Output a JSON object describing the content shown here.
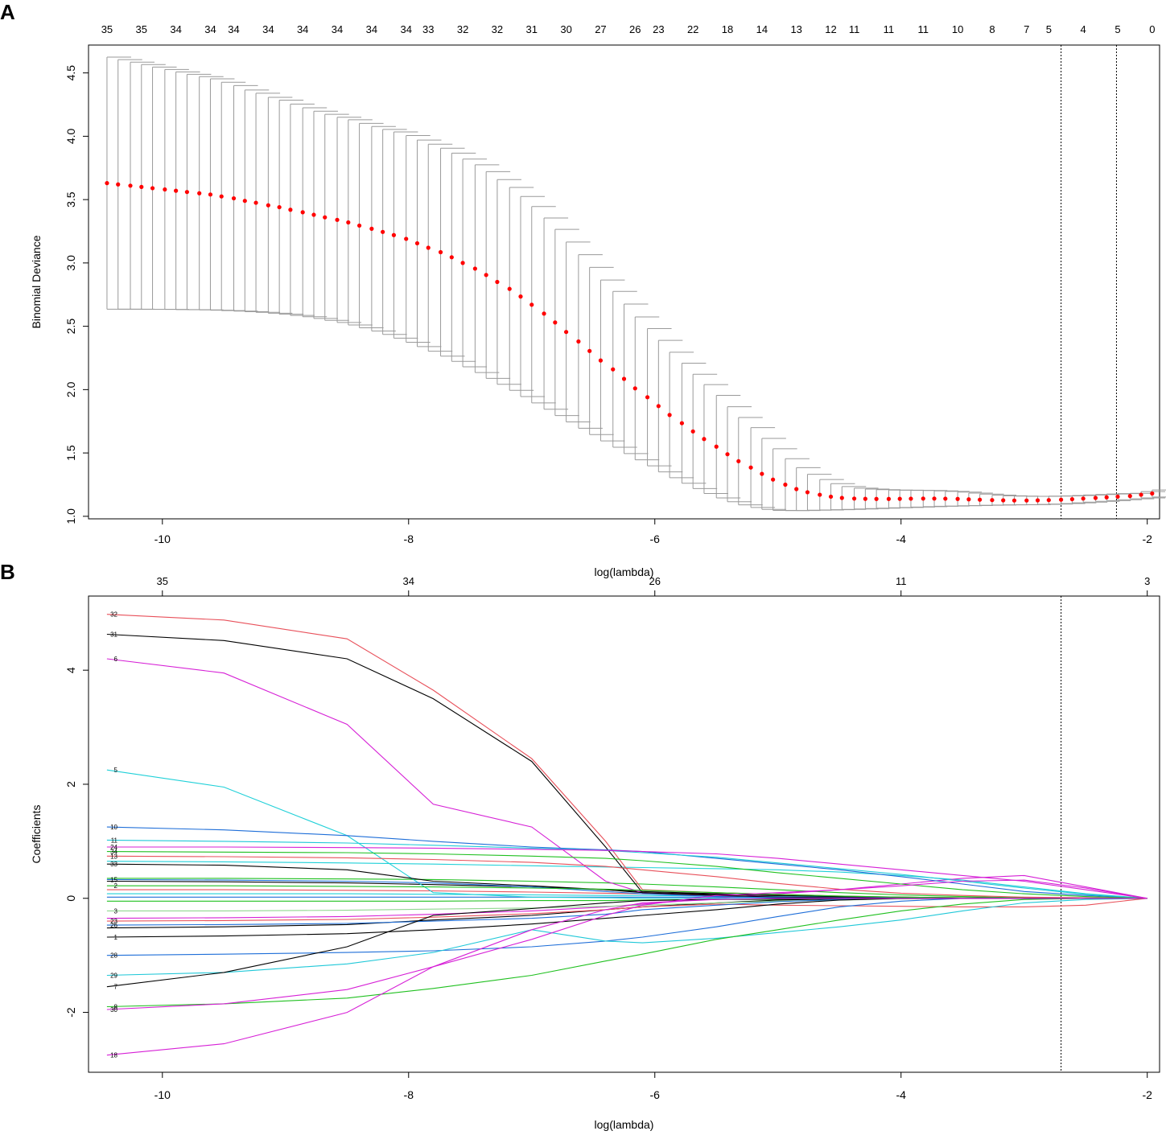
{
  "chart_data": [
    {
      "panel": "A",
      "type": "scatter",
      "xlabel": "log(lambda)",
      "ylabel": "Binomial Deviance",
      "xlim": [
        -10.6,
        -1.9
      ],
      "ylim": [
        0.98,
        4.72
      ],
      "x_ticks": [
        "-10",
        "-8",
        "-6",
        "-4",
        "-2"
      ],
      "y_ticks": [
        "1.0",
        "1.5",
        "2.0",
        "2.5",
        "3.0",
        "3.5",
        "4.0",
        "4.5"
      ],
      "top_axis_labels": [
        "35",
        "35",
        "34",
        "34",
        "34",
        "34",
        "34",
        "34",
        "34",
        "34",
        "33",
        "32",
        "32",
        "31",
        "30",
        "27",
        "26",
        "23",
        "22",
        "18",
        "14",
        "13",
        "12",
        "11",
        "11",
        "11",
        "10",
        "8",
        "7",
        "5",
        "4",
        "5",
        "0"
      ],
      "point_color": "#ff0000",
      "errorbar_color": "#9a9a9a",
      "vlines": [
        -2.7,
        -2.25
      ],
      "x": [
        -10.45,
        -10.36,
        -10.26,
        -10.17,
        -10.08,
        -9.98,
        -9.89,
        -9.8,
        -9.7,
        -9.61,
        -9.52,
        -9.42,
        -9.33,
        -9.24,
        -9.14,
        -9.05,
        -8.96,
        -8.86,
        -8.77,
        -8.68,
        -8.58,
        -8.49,
        -8.4,
        -8.3,
        -8.21,
        -8.12,
        -8.02,
        -7.93,
        -7.84,
        -7.74,
        -7.65,
        -7.56,
        -7.46,
        -7.37,
        -7.28,
        -7.18,
        -7.09,
        -7.0,
        -6.9,
        -6.81,
        -6.72,
        -6.62,
        -6.53,
        -6.44,
        -6.34,
        -6.25,
        -6.16,
        -6.06,
        -5.97,
        -5.88,
        -5.78,
        -5.69,
        -5.6,
        -5.5,
        -5.41,
        -5.32,
        -5.22,
        -5.13,
        -5.04,
        -4.94,
        -4.85,
        -4.76,
        -4.66,
        -4.57,
        -4.48,
        -4.38,
        -4.29,
        -4.2,
        -4.1,
        -4.01,
        -3.92,
        -3.82,
        -3.73,
        -3.64,
        -3.54,
        -3.45,
        -3.36,
        -3.26,
        -3.17,
        -3.08,
        -2.98,
        -2.89,
        -2.8,
        -2.7,
        -2.61,
        -2.52,
        -2.42,
        -2.33,
        -2.24,
        -2.14,
        -2.05,
        -1.96
      ],
      "y": [
        3.63,
        3.62,
        3.61,
        3.6,
        3.59,
        3.58,
        3.57,
        3.56,
        3.55,
        3.54,
        3.525,
        3.51,
        3.49,
        3.475,
        3.455,
        3.44,
        3.42,
        3.4,
        3.38,
        3.36,
        3.34,
        3.32,
        3.295,
        3.27,
        3.245,
        3.22,
        3.19,
        3.155,
        3.12,
        3.085,
        3.045,
        3.0,
        2.955,
        2.905,
        2.85,
        2.795,
        2.735,
        2.67,
        2.6,
        2.53,
        2.455,
        2.38,
        2.305,
        2.23,
        2.16,
        2.085,
        2.01,
        1.94,
        1.87,
        1.8,
        1.735,
        1.67,
        1.61,
        1.55,
        1.49,
        1.435,
        1.385,
        1.335,
        1.29,
        1.25,
        1.215,
        1.19,
        1.17,
        1.155,
        1.145,
        1.14,
        1.138,
        1.137,
        1.137,
        1.138,
        1.139,
        1.14,
        1.14,
        1.139,
        1.137,
        1.134,
        1.131,
        1.128,
        1.126,
        1.125,
        1.125,
        1.126,
        1.128,
        1.131,
        1.135,
        1.14,
        1.145,
        1.15,
        1.155,
        1.16,
        1.17,
        1.18
      ],
      "lower": [
        2.635,
        2.635,
        2.635,
        2.634,
        2.634,
        2.633,
        2.632,
        2.631,
        2.629,
        2.627,
        2.624,
        2.62,
        2.615,
        2.61,
        2.603,
        2.595,
        2.586,
        2.575,
        2.562,
        2.547,
        2.53,
        2.51,
        2.488,
        2.463,
        2.436,
        2.406,
        2.374,
        2.34,
        2.303,
        2.264,
        2.223,
        2.18,
        2.135,
        2.089,
        2.042,
        1.994,
        1.945,
        1.895,
        1.845,
        1.795,
        1.745,
        1.695,
        1.645,
        1.595,
        1.545,
        1.495,
        1.446,
        1.398,
        1.351,
        1.305,
        1.261,
        1.219,
        1.18,
        1.145,
        1.115,
        1.09,
        1.07,
        1.055,
        1.047,
        1.045,
        1.046,
        1.048,
        1.05,
        1.052,
        1.055,
        1.058,
        1.061,
        1.064,
        1.067,
        1.07,
        1.073,
        1.076,
        1.079,
        1.081,
        1.083,
        1.085,
        1.087,
        1.089,
        1.09,
        1.091,
        1.092,
        1.094,
        1.097,
        1.101,
        1.106,
        1.112,
        1.118,
        1.124,
        1.131,
        1.138,
        1.145,
        1.152
      ],
      "upper": [
        4.625,
        4.605,
        4.585,
        4.566,
        4.546,
        4.527,
        4.508,
        4.489,
        4.471,
        4.453,
        4.426,
        4.4,
        4.365,
        4.34,
        4.307,
        4.285,
        4.254,
        4.225,
        4.198,
        4.173,
        4.15,
        4.13,
        4.102,
        4.077,
        4.054,
        4.034,
        4.006,
        3.97,
        3.937,
        3.906,
        3.867,
        3.82,
        3.775,
        3.721,
        3.658,
        3.596,
        3.525,
        3.445,
        3.355,
        3.265,
        3.165,
        3.065,
        2.965,
        2.865,
        2.775,
        2.675,
        2.574,
        2.482,
        2.389,
        2.295,
        2.209,
        2.121,
        2.04,
        1.955,
        1.865,
        1.78,
        1.7,
        1.615,
        1.533,
        1.455,
        1.384,
        1.332,
        1.29,
        1.258,
        1.235,
        1.222,
        1.215,
        1.21,
        1.207,
        1.206,
        1.205,
        1.204,
        1.201,
        1.197,
        1.191,
        1.183,
        1.175,
        1.167,
        1.162,
        1.159,
        1.158,
        1.158,
        1.159,
        1.161,
        1.164,
        1.168,
        1.172,
        1.176,
        1.179,
        1.182,
        1.195,
        1.208
      ]
    },
    {
      "panel": "B",
      "type": "line",
      "xlabel": "log(lambda)",
      "ylabel": "Coefficients",
      "xlim": [
        -10.6,
        -1.9
      ],
      "ylim": [
        -3.05,
        5.3
      ],
      "x_ticks": [
        "-10",
        "-8",
        "-6",
        "-4",
        "-2"
      ],
      "y_ticks": [
        "-2",
        "0",
        "2",
        "4"
      ],
      "top_axis_ticks": [
        {
          "x": -10,
          "label": "35"
        },
        {
          "x": -8,
          "label": "34"
        },
        {
          "x": -6,
          "label": "26"
        },
        {
          "x": -4,
          "label": "11"
        },
        {
          "x": -2,
          "label": "3"
        }
      ],
      "vlines": [
        -2.7
      ],
      "x": [
        -10.45,
        -9.5,
        -8.5,
        -7.8,
        -7.0,
        -6.4,
        -6.1,
        -5.5,
        -5.0,
        -4.5,
        -4.0,
        -3.5,
        -3.0,
        -2.5,
        -2.0
      ],
      "series": [
        {
          "label": "32",
          "color": "#e8505a",
          "values": [
            4.98,
            4.88,
            4.55,
            3.65,
            2.45,
            1.0,
            0.15,
            0.1,
            0.07,
            0.04,
            0.02,
            0.01,
            0,
            0,
            0
          ]
        },
        {
          "label": "31",
          "color": "#000000",
          "values": [
            4.63,
            4.52,
            4.2,
            3.5,
            2.4,
            0.9,
            0.1,
            0.07,
            0.05,
            0.03,
            0.02,
            0.01,
            0,
            0,
            0
          ]
        },
        {
          "label": "6",
          "color": "#d620d6",
          "values": [
            4.2,
            3.95,
            3.05,
            1.65,
            1.25,
            0.3,
            0.1,
            0.05,
            0.02,
            0.01,
            0,
            0,
            0,
            0,
            0
          ]
        },
        {
          "label": "5",
          "color": "#20d0d8",
          "values": [
            2.25,
            1.95,
            1.1,
            0.1,
            0.02,
            0.01,
            0,
            0,
            0,
            0,
            0,
            0,
            0,
            0,
            0
          ]
        },
        {
          "label": "10",
          "color": "#1e6ed8",
          "values": [
            1.25,
            1.2,
            1.1,
            1.0,
            0.9,
            0.85,
            0.82,
            0.7,
            0.6,
            0.5,
            0.38,
            0.25,
            0.12,
            0.05,
            0
          ]
        },
        {
          "label": "11",
          "color": "#20c8d8",
          "values": [
            1.02,
            1.0,
            0.97,
            0.93,
            0.88,
            0.84,
            0.8,
            0.72,
            0.62,
            0.52,
            0.42,
            0.3,
            0.18,
            0.07,
            0
          ]
        },
        {
          "label": "24",
          "color": "#d620d6",
          "values": [
            0.9,
            0.9,
            0.89,
            0.88,
            0.86,
            0.84,
            0.82,
            0.78,
            0.7,
            0.6,
            0.5,
            0.4,
            0.3,
            0.15,
            0
          ]
        },
        {
          "label": "34",
          "color": "#20c020",
          "values": [
            0.82,
            0.81,
            0.8,
            0.78,
            0.74,
            0.7,
            0.66,
            0.56,
            0.45,
            0.35,
            0.25,
            0.15,
            0.08,
            0.03,
            0
          ]
        },
        {
          "label": "13",
          "color": "#e8505a",
          "values": [
            0.74,
            0.73,
            0.71,
            0.68,
            0.63,
            0.56,
            0.5,
            0.38,
            0.26,
            0.16,
            0.09,
            0.05,
            0.02,
            0.01,
            0
          ]
        },
        {
          "label": "33",
          "color": "#000000",
          "values": [
            0.6,
            0.58,
            0.5,
            0.3,
            0.22,
            0.15,
            0.1,
            0.05,
            0.02,
            0.01,
            0,
            0,
            0,
            0,
            0
          ]
        },
        {
          "label": "15",
          "color": "#1e6ed8",
          "values": [
            0.33,
            0.32,
            0.3,
            0.27,
            0.2,
            0.12,
            0.08,
            0.03,
            0.01,
            0,
            0,
            0,
            0,
            0,
            0
          ]
        },
        {
          "label": "2",
          "color": "#20c020",
          "values": [
            0.22,
            0.22,
            0.21,
            0.2,
            0.18,
            0.16,
            0.14,
            0.1,
            0.07,
            0.04,
            0.02,
            0.01,
            0,
            0,
            0
          ]
        },
        {
          "label": "3",
          "color": "#90d890",
          "values": [
            -0.22,
            -0.22,
            -0.21,
            -0.19,
            -0.17,
            -0.14,
            -0.12,
            -0.08,
            -0.05,
            -0.03,
            -0.01,
            0,
            0,
            0,
            0
          ]
        },
        {
          "label": "23",
          "color": "#e8505a",
          "values": [
            -0.4,
            -0.39,
            -0.37,
            -0.33,
            -0.27,
            -0.2,
            -0.15,
            -0.1,
            -0.12,
            -0.13,
            -0.14,
            -0.15,
            -0.15,
            -0.12,
            0
          ]
        },
        {
          "label": "26",
          "color": "#1e6ed8",
          "values": [
            -0.47,
            -0.46,
            -0.44,
            -0.4,
            -0.35,
            -0.28,
            -0.2,
            -0.12,
            -0.06,
            -0.02,
            0,
            0,
            0,
            0,
            0
          ]
        },
        {
          "label": "1",
          "color": "#000000",
          "values": [
            -0.68,
            -0.66,
            -0.62,
            -0.55,
            -0.45,
            -0.35,
            -0.3,
            -0.2,
            -0.1,
            -0.03,
            0,
            0,
            0,
            0,
            0
          ]
        },
        {
          "label": "28",
          "color": "#1e6ed8",
          "values": [
            -1.0,
            -0.98,
            -0.95,
            -0.92,
            -0.85,
            -0.75,
            -0.68,
            -0.5,
            -0.32,
            -0.15,
            -0.05,
            0,
            0,
            0,
            0
          ]
        },
        {
          "label": "29",
          "color": "#20c8d8",
          "values": [
            -1.35,
            -1.3,
            -1.15,
            -0.95,
            -0.55,
            -0.75,
            -0.78,
            -0.7,
            -0.6,
            -0.5,
            -0.38,
            -0.22,
            -0.08,
            -0.02,
            0
          ]
        },
        {
          "label": "7",
          "color": "#000000",
          "values": [
            -1.55,
            -1.3,
            -0.85,
            -0.3,
            -0.18,
            -0.08,
            -0.04,
            -0.02,
            -0.01,
            0,
            0,
            0,
            0,
            0,
            0
          ]
        },
        {
          "label": "8",
          "color": "#20c020",
          "values": [
            -1.9,
            -1.85,
            -1.75,
            -1.58,
            -1.35,
            -1.1,
            -0.98,
            -0.72,
            -0.55,
            -0.38,
            -0.22,
            -0.1,
            -0.02,
            0,
            0
          ]
        },
        {
          "label": "30",
          "color": "#d620d6",
          "values": [
            -1.95,
            -1.85,
            -1.6,
            -1.2,
            -0.72,
            -0.3,
            -0.12,
            0.05,
            0.1,
            0.15,
            0.22,
            0.3,
            0.32,
            0.18,
            0
          ]
        },
        {
          "label": "18",
          "color": "#d620d6",
          "values": [
            -2.75,
            -2.55,
            -2.0,
            -1.2,
            -0.55,
            -0.2,
            -0.08,
            -0.02,
            0,
            0,
            0,
            0,
            0,
            0,
            0
          ]
        }
      ],
      "unlabeled_series": [
        {
          "color": "#20d0d8",
          "values": [
            0.65,
            0.64,
            0.62,
            0.6,
            0.57,
            0.55,
            0.54,
            0.52,
            0.5,
            0.46,
            0.4,
            0.32,
            0.2,
            0.08,
            0
          ]
        },
        {
          "color": "#20c020",
          "values": [
            0.35,
            0.35,
            0.34,
            0.33,
            0.3,
            0.27,
            0.25,
            0.2,
            0.15,
            0.1,
            0.06,
            0.03,
            0.01,
            0,
            0
          ]
        },
        {
          "color": "#000000",
          "values": [
            0.3,
            0.29,
            0.27,
            0.24,
            0.2,
            0.15,
            0.12,
            0.08,
            0.04,
            0.02,
            0.01,
            0,
            0,
            0,
            0
          ]
        },
        {
          "color": "#e8505a",
          "values": [
            0.15,
            0.15,
            0.14,
            0.13,
            0.11,
            0.09,
            0.08,
            0.05,
            0.03,
            0.02,
            0.01,
            0,
            0,
            0,
            0
          ]
        },
        {
          "color": "#20d0d8",
          "values": [
            0.08,
            0.08,
            0.08,
            0.07,
            0.06,
            0.05,
            0.05,
            0.04,
            0.03,
            0.02,
            0.01,
            0,
            0,
            0,
            0
          ]
        },
        {
          "color": "#1e6ed8",
          "values": [
            0.02,
            0.02,
            0.02,
            0.02,
            0.02,
            0.02,
            0.02,
            0.02,
            0.02,
            0.02,
            0.01,
            0.01,
            0,
            0,
            0
          ]
        },
        {
          "color": "#20c020",
          "values": [
            -0.05,
            -0.05,
            -0.05,
            -0.05,
            -0.04,
            -0.04,
            -0.03,
            -0.02,
            -0.02,
            -0.01,
            0,
            0,
            0,
            0,
            0
          ]
        },
        {
          "color": "#d620d6",
          "values": [
            -0.35,
            -0.34,
            -0.32,
            -0.28,
            -0.22,
            -0.15,
            -0.1,
            0.0,
            0.08,
            0.15,
            0.25,
            0.35,
            0.4,
            0.2,
            0
          ]
        },
        {
          "color": "#000000",
          "values": [
            -0.52,
            -0.5,
            -0.46,
            -0.38,
            -0.3,
            -0.2,
            -0.15,
            -0.08,
            -0.03,
            -0.01,
            0,
            0,
            0,
            0,
            0
          ]
        }
      ]
    }
  ],
  "panels": {
    "a_letter": "A",
    "b_letter": "B"
  }
}
